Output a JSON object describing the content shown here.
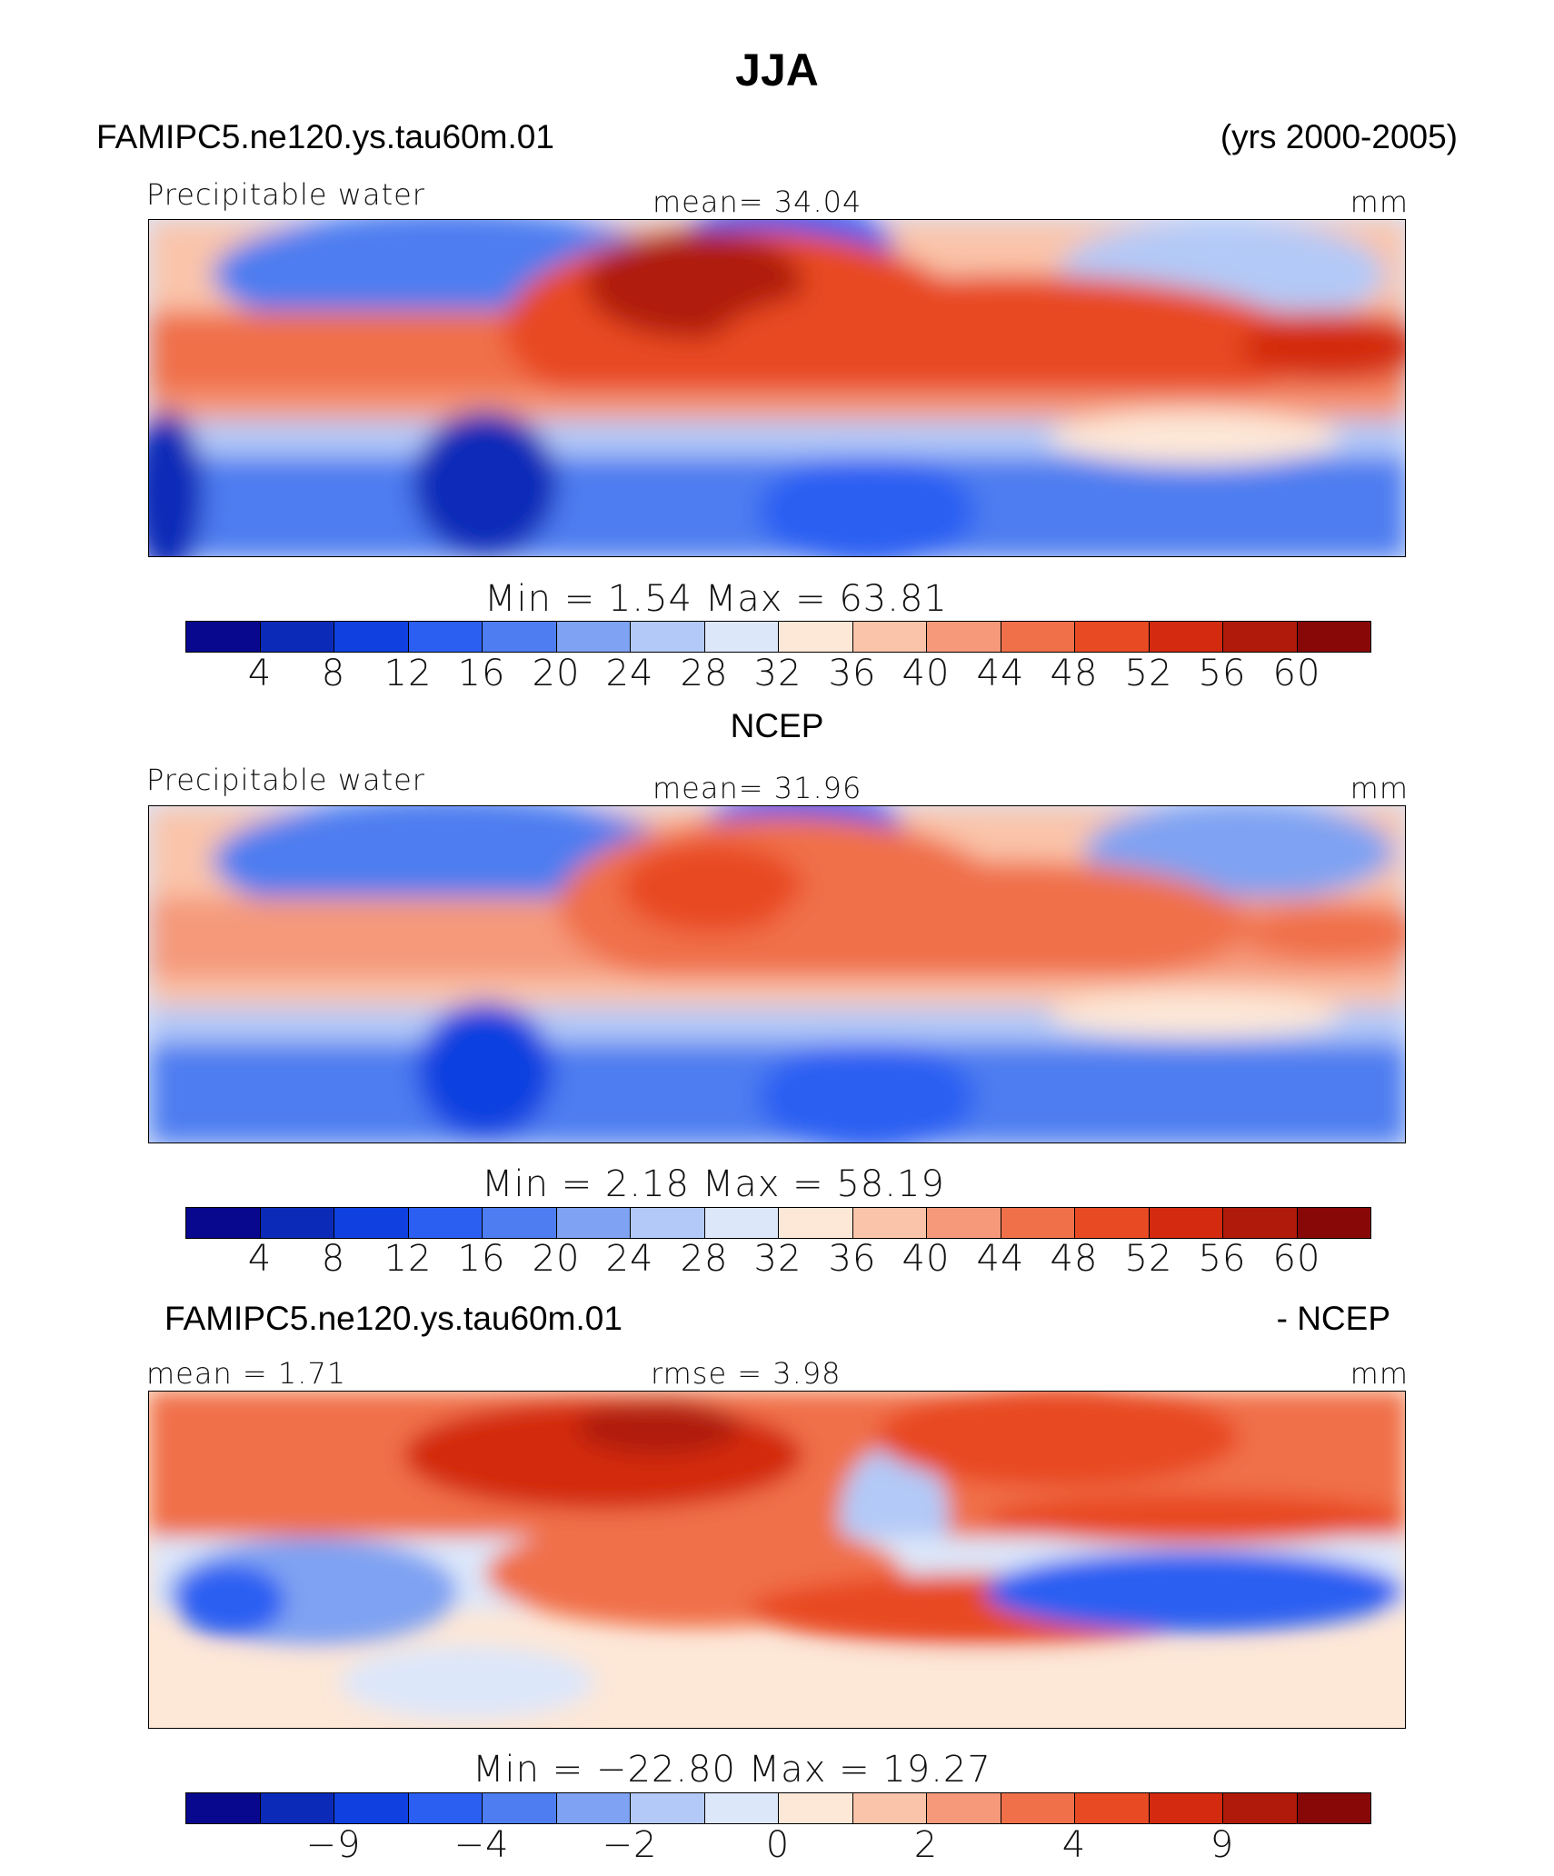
{
  "title": "JJA",
  "case_name": "FAMIPC5.ne120.ys.tau60m.01",
  "years": "(yrs 2000-2005)",
  "panels": {
    "top": {
      "variable": "Precipitable water",
      "mean": "mean=   34.04",
      "units": "mm",
      "minmax": "Min  =      1.54  Max  =    63.81",
      "ticks": [
        "4",
        "8",
        "12",
        "16",
        "20",
        "24",
        "28",
        "32",
        "36",
        "40",
        "44",
        "48",
        "52",
        "56",
        "60"
      ]
    },
    "middle": {
      "header": "NCEP",
      "variable": "Precipitable water",
      "mean": "mean=   31.96",
      "units": "mm",
      "minmax": "Min  =     2.18  Max  =    58.19",
      "ticks": [
        "4",
        "8",
        "12",
        "16",
        "20",
        "24",
        "28",
        "32",
        "36",
        "40",
        "44",
        "48",
        "52",
        "56",
        "60"
      ]
    },
    "bottom": {
      "header_left": "FAMIPC5.ne120.ys.tau60m.01",
      "header_right": "- NCEP",
      "mean": "mean  =    1.71",
      "rmse": "rmse  =    3.98",
      "units": "mm",
      "minmax": "Min  =  −22.80  Max  =    19.27",
      "ticks": [
        "−9",
        "−4",
        "−2",
        "0",
        "2",
        "4",
        "9"
      ]
    }
  },
  "colors": {
    "abs_scale": [
      "#08088f",
      "#0c2ab8",
      "#1040e0",
      "#2b5ff2",
      "#4d7df0",
      "#7fa2f2",
      "#b3c9f7",
      "#dde7fa",
      "#fde7d7",
      "#fac4aa",
      "#f5997a",
      "#f0704a",
      "#e84a24",
      "#d32a10",
      "#b01a0a",
      "#880808"
    ],
    "diff_scale": [
      "#08088f",
      "#0c2ab8",
      "#1040e0",
      "#2b5ff2",
      "#4d7df0",
      "#7fa2f2",
      "#b3c9f7",
      "#dde7fa",
      "#fde7d7",
      "#fac4aa",
      "#f5997a",
      "#f0704a",
      "#e84a24",
      "#d32a10",
      "#b01a0a",
      "#880808"
    ]
  }
}
